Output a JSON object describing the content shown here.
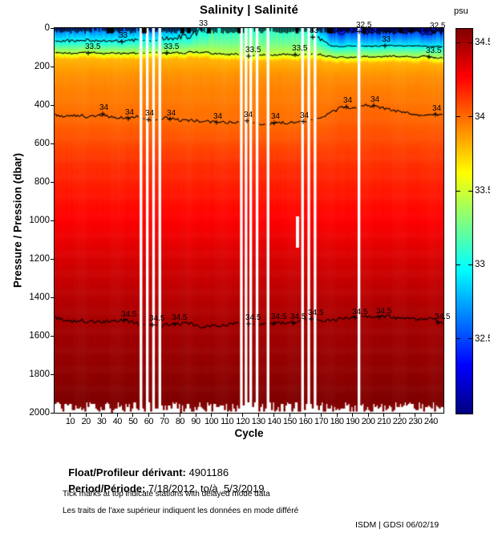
{
  "chart_data": {
    "type": "heatmap",
    "title": "Salinity | Salinité",
    "xlabel": "Cycle",
    "ylabel": "Pressure / Pression (dbar)",
    "x_range": [
      0,
      248
    ],
    "y_range_dbar": [
      0,
      2000
    ],
    "x_ticks": [
      10,
      20,
      30,
      40,
      50,
      60,
      70,
      80,
      90,
      100,
      110,
      120,
      130,
      140,
      150,
      160,
      170,
      180,
      190,
      200,
      210,
      220,
      230,
      240
    ],
    "y_ticks": [
      0,
      200,
      400,
      600,
      800,
      1000,
      1200,
      1400,
      1600,
      1800,
      2000
    ],
    "colorbar": {
      "label": "psu",
      "ticks": [
        "34.5",
        "34",
        "33.5",
        "33",
        "32.5"
      ],
      "tick_values": [
        34.5,
        34,
        33.5,
        33,
        32.5
      ],
      "value_range": [
        32.0,
        34.6
      ],
      "colormap": "jet",
      "position": "right"
    },
    "grid": false,
    "missing_cycles": [
      55,
      56,
      59,
      60,
      63,
      64,
      67,
      68,
      119,
      120,
      122,
      123,
      125,
      126,
      129,
      130,
      136,
      137,
      158,
      159,
      162,
      163,
      166,
      167,
      194,
      195
    ],
    "partial_missing": {
      "cycles": [
        155,
        156
      ],
      "depth_range_dbar": [
        980,
        1140
      ]
    },
    "surface_salinity_breakpoints": [
      [
        1,
        32.6
      ],
      [
        45,
        32.6
      ],
      [
        85,
        32.78
      ],
      [
        100,
        33.05
      ],
      [
        163,
        33.05
      ],
      [
        178,
        32.35
      ],
      [
        248,
        32.35
      ]
    ],
    "halocline_depth_trend": [
      [
        1,
        130
      ],
      [
        90,
        128
      ],
      [
        130,
        140
      ],
      [
        165,
        135
      ],
      [
        178,
        150
      ],
      [
        248,
        150
      ]
    ],
    "deep_profile_breakpoints": [
      [
        260,
        33.92
      ],
      [
        700,
        34.15
      ],
      [
        1000,
        34.28
      ],
      [
        1250,
        34.4
      ],
      [
        1800,
        34.56
      ],
      [
        2000,
        34.62
      ]
    ],
    "contour_34_depth_trend": [
      [
        1,
        450
      ],
      [
        60,
        465
      ],
      [
        110,
        495
      ],
      [
        160,
        490
      ],
      [
        185,
        410
      ],
      [
        205,
        405
      ],
      [
        230,
        455
      ],
      [
        248,
        445
      ]
    ],
    "contour_345_depth_trend": [
      [
        1,
        1510
      ],
      [
        80,
        1545
      ],
      [
        150,
        1530
      ],
      [
        200,
        1500
      ],
      [
        248,
        1520
      ]
    ],
    "max_profile_depth_range_dbar": [
      1938,
      1993
    ],
    "contours": [
      {
        "label": "32.5",
        "value": 32.5,
        "labels_x": [
          448,
          540
        ]
      },
      {
        "label": "33",
        "value": 33,
        "labels_x": [
          152,
          252,
          335,
          390,
          480
        ]
      },
      {
        "label": "33.5",
        "value": 33.5,
        "labels_x": [
          110,
          208,
          310,
          368,
          535
        ]
      },
      {
        "label": "34",
        "value": 34,
        "labels_x": [
          128,
          160,
          185,
          212,
          270,
          308,
          342,
          378,
          432,
          466,
          543
        ]
      },
      {
        "label": "34.5",
        "value": 34.5,
        "labels_x": [
          155,
          190,
          218,
          310,
          342,
          366,
          388,
          443,
          473,
          546
        ]
      }
    ],
    "delayed_mode_ticks_on_top": true,
    "noise_seed": 1234567
  },
  "footer": {
    "float_label": "Float/Profileur dérivant:",
    "float_value": " 4901186",
    "period_label": "Period/Période:",
    "period_value": " 7/18/2012  to/à  5/3/2019",
    "note_en": "Tick marks at top indicate stations with delayed mode data",
    "note_fr": "Les traits de l'axe supérieur indiquent les données en mode différé",
    "credit": "ISDM | GDSI  06/02/19"
  }
}
